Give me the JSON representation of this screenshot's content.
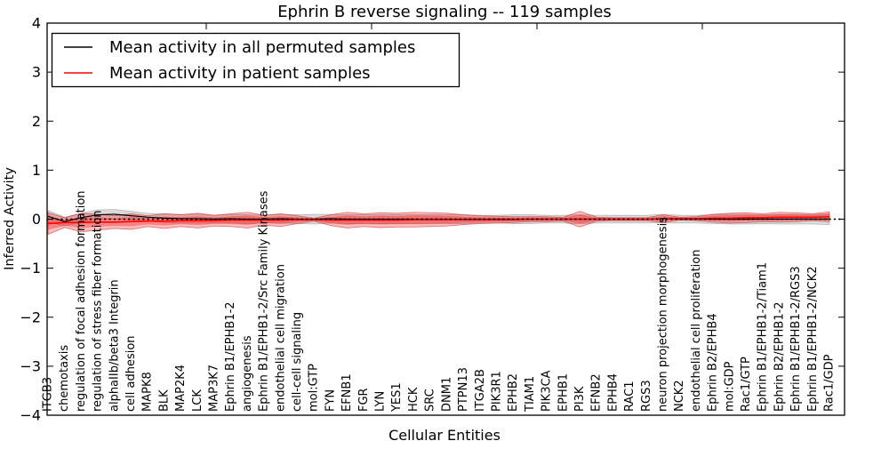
{
  "chart_data": {
    "type": "line",
    "title": "Ephrin B reverse signaling -- 119 samples",
    "xlabel": "Cellular Entities",
    "ylabel": "Inferred Activity",
    "ylim": [
      -4,
      4
    ],
    "grid": false,
    "legend_position": "upper left",
    "yticks": {
      "values": [
        4,
        3,
        2,
        1,
        0,
        -1,
        -2,
        -3,
        -4
      ],
      "labels": [
        "4",
        "3",
        "2",
        "1",
        "0",
        "−1",
        "−2",
        "−3",
        "−4"
      ]
    },
    "categories": [
      "ITGB3",
      "chemotaxis",
      "regulation of focal adhesion formation",
      "regulation of stress fiber formation",
      "alphaIIb/beta3 Integrin",
      "cell adhesion",
      "MAPK8",
      "BLK",
      "MAP2K4",
      "LCK",
      "MAP3K7",
      "Ephrin B1/EPHB1-2",
      "angiogenesis",
      "Ephrin B1/EPHB1-2/Src Family Kinases",
      "endothelial cell migration",
      "cell-cell signaling",
      "mol:GTP",
      "FYN",
      "EFNB1",
      "FGR",
      "LYN",
      "YES1",
      "HCK",
      "SRC",
      "DNM1",
      "PTPN13",
      "ITGA2B",
      "PIK3R1",
      "EPHB2",
      "TIAM1",
      "PIK3CA",
      "EPHB1",
      "PI3K",
      "EFNB2",
      "EPHB4",
      "RAC1",
      "RGS3",
      "neuron projection morphogenesis",
      "NCK2",
      "endothelial cell proliferation",
      "Ephrin B2/EPHB4",
      "mol:GDP",
      "Rac1/GTP",
      "Ephrin B1/EPHB1-2/Tiam1",
      "Ephrin B2/EPHB1-2",
      "Ephrin B1/EPHB1-2/RGS3",
      "Ephrin B1/EPHB1-2/NCK2",
      "Rac1/GDP"
    ],
    "series": [
      {
        "name": "Mean activity in all permuted samples",
        "color": "#000000",
        "line_style": "solid",
        "band_fill": "#c9c9c9",
        "values": [
          0.06,
          -0.05,
          0.03,
          0.09,
          0.1,
          0.07,
          0.04,
          0.02,
          0.01,
          0.01,
          0.0,
          0.01,
          0.0,
          0.0,
          0.01,
          0.0,
          0.0,
          0.01,
          0.0,
          0.0,
          0.0,
          0.0,
          0.0,
          0.0,
          0.0,
          0.0,
          0.0,
          0.0,
          0.0,
          0.0,
          0.0,
          0.0,
          0.0,
          0.0,
          0.0,
          0.0,
          0.0,
          0.01,
          0.0,
          0.0,
          0.0,
          0.0,
          0.0,
          0.0,
          0.0,
          0.0,
          0.0,
          0.0
        ],
        "band_halfwidth": [
          0.12,
          0.09,
          0.09,
          0.1,
          0.1,
          0.09,
          0.08,
          0.09,
          0.09,
          0.09,
          0.08,
          0.09,
          0.09,
          0.08,
          0.09,
          0.09,
          0.1,
          0.09,
          0.09,
          0.09,
          0.09,
          0.09,
          0.09,
          0.09,
          0.09,
          0.09,
          0.08,
          0.08,
          0.09,
          0.09,
          0.08,
          0.08,
          0.09,
          0.08,
          0.08,
          0.08,
          0.08,
          0.09,
          0.08,
          0.08,
          0.09,
          0.1,
          0.1,
          0.09,
          0.1,
          0.1,
          0.1,
          0.11
        ]
      },
      {
        "name": "Mean activity in patient samples",
        "color": "#ff0000",
        "line_style": "solid",
        "band_fill": "#ff9999",
        "values": [
          -0.09,
          -0.07,
          -0.07,
          -0.06,
          -0.06,
          -0.05,
          -0.04,
          -0.04,
          -0.03,
          -0.03,
          -0.03,
          -0.02,
          -0.02,
          -0.02,
          -0.02,
          -0.01,
          -0.01,
          -0.02,
          -0.02,
          -0.02,
          -0.02,
          -0.02,
          -0.01,
          -0.01,
          -0.01,
          -0.01,
          -0.01,
          -0.01,
          -0.01,
          0.0,
          0.0,
          0.0,
          0.0,
          0.0,
          0.0,
          0.0,
          0.0,
          0.01,
          0.01,
          0.01,
          0.02,
          0.02,
          0.03,
          0.03,
          0.04,
          0.04,
          0.04,
          0.05
        ],
        "band_halfwidth": [
          0.22,
          0.1,
          0.19,
          0.16,
          0.13,
          0.16,
          0.11,
          0.15,
          0.12,
          0.15,
          0.11,
          0.13,
          0.16,
          0.1,
          0.13,
          0.08,
          0.03,
          0.11,
          0.16,
          0.13,
          0.15,
          0.14,
          0.15,
          0.14,
          0.13,
          0.1,
          0.08,
          0.07,
          0.06,
          0.05,
          0.05,
          0.04,
          0.16,
          0.04,
          0.03,
          0.03,
          0.03,
          0.08,
          0.03,
          0.04,
          0.08,
          0.1,
          0.1,
          0.08,
          0.1,
          0.09,
          0.07,
          0.1
        ]
      }
    ],
    "reference_line": {
      "y": 0,
      "style": "dotted",
      "color": "#000000"
    }
  }
}
